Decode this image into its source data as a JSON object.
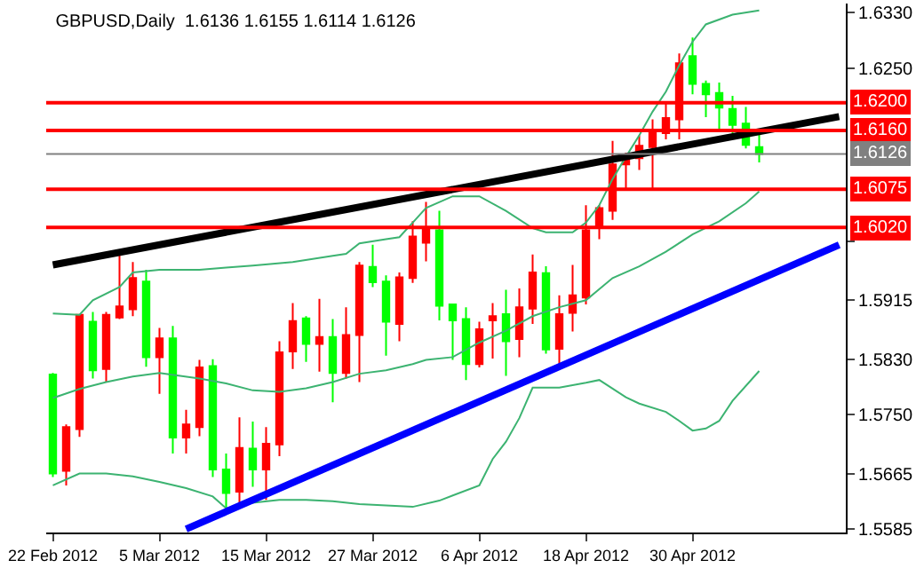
{
  "chart_data": {
    "type": "candlestick",
    "title": "GBPUSD,Daily  1.6136 1.6155 1.6114 1.6126",
    "categories": [
      "22 Feb 2012",
      null,
      null,
      null,
      null,
      null,
      null,
      null,
      "5 Mar 2012",
      null,
      null,
      null,
      null,
      null,
      null,
      null,
      "15 Mar 2012",
      null,
      null,
      null,
      null,
      null,
      null,
      null,
      "27 Mar 2012",
      null,
      null,
      null,
      null,
      null,
      null,
      null,
      "6 Apr 2012",
      null,
      null,
      null,
      null,
      null,
      null,
      null,
      "18 Apr 2012",
      null,
      null,
      null,
      null,
      null,
      null,
      null,
      "30 Apr 2012",
      null,
      null,
      null,
      null,
      null,
      null,
      null,
      null,
      null,
      null,
      null
    ],
    "ohlc": [
      [
        1.5808,
        1.581,
        1.566,
        1.5665
      ],
      [
        1.5669,
        1.5736,
        1.5648,
        1.5732
      ],
      [
        1.5729,
        1.5894,
        1.5718,
        1.5894
      ],
      [
        1.5884,
        1.5898,
        1.5802,
        1.5814
      ],
      [
        1.5816,
        1.5898,
        1.5797,
        1.5894
      ],
      [
        1.589,
        1.5985,
        1.5888,
        1.5906
      ],
      [
        1.5902,
        1.597,
        1.5892,
        1.5947
      ],
      [
        1.5942,
        1.5959,
        1.5819,
        1.5833
      ],
      [
        1.5833,
        1.5875,
        1.578,
        1.586
      ],
      [
        1.586,
        1.5878,
        1.5694,
        1.5717
      ],
      [
        1.5717,
        1.5757,
        1.5694,
        1.5736
      ],
      [
        1.5732,
        1.5829,
        1.5719,
        1.5818
      ],
      [
        1.582,
        1.583,
        1.566,
        1.5671
      ],
      [
        1.5671,
        1.5694,
        1.5614,
        1.5637
      ],
      [
        1.5639,
        1.5746,
        1.5618,
        1.5702
      ],
      [
        1.5701,
        1.574,
        1.5646,
        1.5671
      ],
      [
        1.5671,
        1.5732,
        1.5627,
        1.5708
      ],
      [
        1.5707,
        1.5856,
        1.569,
        1.584
      ],
      [
        1.5841,
        1.5911,
        1.5816,
        1.5885
      ],
      [
        1.5889,
        1.5892,
        1.5826,
        1.5852
      ],
      [
        1.5852,
        1.5917,
        1.5812,
        1.5862
      ],
      [
        1.5862,
        1.5888,
        1.5768,
        1.581
      ],
      [
        1.581,
        1.5905,
        1.5802,
        1.5865
      ],
      [
        1.5865,
        1.597,
        1.5797,
        1.5965
      ],
      [
        1.5963,
        1.5995,
        1.5934,
        1.5941
      ],
      [
        1.5942,
        1.5951,
        1.5835,
        1.5884
      ],
      [
        1.5881,
        1.5955,
        1.5856,
        1.5948
      ],
      [
        1.5947,
        1.6029,
        1.594,
        1.6007
      ],
      [
        1.5998,
        1.6057,
        1.5971,
        1.6017
      ],
      [
        1.6016,
        1.6044,
        1.5886,
        1.5907
      ],
      [
        1.5909,
        1.5909,
        1.5829,
        1.5886
      ],
      [
        1.5888,
        1.5905,
        1.58,
        1.5823
      ],
      [
        1.5823,
        1.5884,
        1.5818,
        1.5873
      ],
      [
        1.5886,
        1.5911,
        1.5831,
        1.5892
      ],
      [
        1.5895,
        1.593,
        1.5806,
        1.5856
      ],
      [
        1.5859,
        1.5932,
        1.5833,
        1.5905
      ],
      [
        1.5903,
        1.5981,
        1.5881,
        1.5955
      ],
      [
        1.5954,
        1.5964,
        1.5838,
        1.5844
      ],
      [
        1.5845,
        1.5922,
        1.5817,
        1.5895
      ],
      [
        1.5897,
        1.5966,
        1.587,
        1.5922
      ],
      [
        1.5919,
        1.6052,
        1.5909,
        1.6016
      ],
      [
        1.6022,
        1.6052,
        1.6003,
        1.6048
      ],
      [
        1.6044,
        1.6145,
        1.6031,
        1.6111
      ],
      [
        1.6111,
        1.6128,
        1.6075,
        1.6125
      ],
      [
        1.612,
        1.6153,
        1.6103,
        1.6138
      ],
      [
        1.6136,
        1.6176,
        1.6075,
        1.6157
      ],
      [
        1.6156,
        1.6201,
        1.6147,
        1.6178
      ],
      [
        1.6176,
        1.6271,
        1.6147,
        1.6257
      ],
      [
        1.6267,
        1.6294,
        1.6212,
        1.6227
      ],
      [
        1.6227,
        1.6232,
        1.6179,
        1.6212
      ],
      [
        1.6214,
        1.6229,
        1.6159,
        1.6193
      ],
      [
        1.6191,
        1.621,
        1.6156,
        1.6168
      ],
      [
        1.617,
        1.6194,
        1.6134,
        1.6139
      ],
      [
        1.6136,
        1.6155,
        1.6114,
        1.6126
      ],
      null,
      null,
      null,
      null,
      null,
      null
    ],
    "colors": [
      "#00ff00",
      "#ff0000",
      "#ff0000",
      "#00ff00",
      "#ff0000",
      "#ff0000",
      "#ff0000",
      "#00ff00",
      "#ff0000",
      "#00ff00",
      "#ff0000",
      "#ff0000",
      "#00ff00",
      "#00ff00",
      "#ff0000",
      "#00ff00",
      "#ff0000",
      "#ff0000",
      "#ff0000",
      "#00ff00",
      "#ff0000",
      "#00ff00",
      "#ff0000",
      "#ff0000",
      "#00ff00",
      "#00ff00",
      "#ff0000",
      "#ff0000",
      "#ff0000",
      "#00ff00",
      "#00ff00",
      "#00ff00",
      "#ff0000",
      "#ff0000",
      "#00ff00",
      "#ff0000",
      "#ff0000",
      "#00ff00",
      "#ff0000",
      "#ff0000",
      "#ff0000",
      "#ff0000",
      "#ff0000",
      "#ff0000",
      "#ff0000",
      "#ff0000",
      "#ff0000",
      "#ff0000",
      "#00ff00",
      "#00ff00",
      "#00ff00",
      "#00ff00",
      "#00ff00",
      "#00ff00",
      null,
      null,
      null,
      null,
      null,
      null
    ],
    "series": [
      {
        "type": "line",
        "color": "#3cb371",
        "values": [
          1.5896,
          null,
          1.5894,
          1.5915,
          null,
          1.5934,
          1.5955,
          null,
          1.5959,
          null,
          null,
          1.5959,
          null,
          1.5962,
          null,
          1.5965,
          null,
          null,
          1.597,
          null,
          null,
          1.5979,
          1.5982,
          1.5997,
          null,
          1.6003,
          1.6006,
          1.6027,
          1.6048,
          null,
          1.6065,
          null,
          1.6065,
          null,
          1.6044,
          null,
          1.6019,
          1.6013,
          null,
          1.6013,
          1.6027,
          1.6052,
          1.609,
          1.6122,
          1.6153,
          1.6187,
          1.6216,
          1.6254,
          1.6288,
          1.6313,
          null,
          1.6327,
          null,
          1.6333,
          null,
          null,
          null,
          null,
          null,
          null
        ]
      },
      {
        "type": "line",
        "color": "#3cb371",
        "values": [
          1.5774,
          null,
          1.5787,
          null,
          1.5797,
          null,
          1.5805,
          null,
          1.581,
          null,
          null,
          1.5802,
          null,
          1.5795,
          null,
          1.5785,
          null,
          1.5783,
          null,
          1.5788,
          null,
          1.5797,
          null,
          1.5809,
          null,
          1.5814,
          null,
          1.5823,
          1.5829,
          null,
          1.5833,
          null,
          1.5854,
          null,
          1.5871,
          null,
          1.5892,
          null,
          1.5905,
          null,
          1.5915,
          null,
          1.5947,
          null,
          1.5964,
          null,
          1.5985,
          null,
          1.601,
          null,
          1.6029,
          null,
          1.6055,
          1.6072,
          null,
          null,
          null,
          null,
          null,
          null
        ]
      },
      {
        "type": "line",
        "color": "#3cb371",
        "values": [
          1.5648,
          null,
          1.5665,
          null,
          1.5665,
          null,
          1.5661,
          null,
          1.5653,
          null,
          1.5644,
          null,
          1.5632,
          1.5615,
          null,
          1.5623,
          null,
          1.5627,
          null,
          1.5627,
          null,
          1.5625,
          null,
          1.5621,
          null,
          1.5619,
          null,
          1.5617,
          null,
          1.5626,
          null,
          null,
          1.5648,
          1.5686,
          1.5711,
          1.5745,
          1.5789,
          null,
          1.5789,
          null,
          1.5796,
          1.58,
          null,
          1.5775,
          1.5766,
          null,
          1.5754,
          1.5741,
          1.5727,
          1.573,
          1.5741,
          1.577,
          null,
          1.5813,
          null,
          null,
          null,
          null,
          null,
          null
        ]
      },
      {
        "type": "line",
        "color": "#000000",
        "values": [
          1.5966,
          null,
          null,
          null,
          null,
          null,
          null,
          null,
          null,
          null,
          null,
          null,
          null,
          null,
          null,
          null,
          null,
          null,
          null,
          null,
          null,
          null,
          null,
          null,
          null,
          null,
          null,
          null,
          null,
          null,
          null,
          null,
          null,
          null,
          null,
          null,
          null,
          null,
          null,
          null,
          null,
          null,
          null,
          null,
          null,
          null,
          null,
          null,
          null,
          null,
          null,
          null,
          null,
          null,
          null,
          null,
          null,
          null,
          null,
          1.618
        ]
      },
      {
        "type": "line",
        "color": "#0000ff",
        "values": [
          null,
          null,
          null,
          null,
          null,
          null,
          null,
          null,
          null,
          null,
          1.5585,
          null,
          null,
          null,
          null,
          null,
          null,
          null,
          null,
          null,
          null,
          null,
          null,
          null,
          null,
          null,
          null,
          null,
          null,
          null,
          null,
          null,
          null,
          null,
          null,
          null,
          null,
          null,
          null,
          null,
          null,
          null,
          null,
          null,
          null,
          null,
          null,
          null,
          null,
          null,
          null,
          null,
          null,
          null,
          null,
          null,
          null,
          null,
          null,
          1.5995
        ]
      }
    ],
    "ref_lines": [
      {
        "axis": "y",
        "value": 1.62,
        "label": "1.6200",
        "color": "#ff0000"
      },
      {
        "axis": "y",
        "value": 1.616,
        "label": "1.6160",
        "color": "#ff0000"
      },
      {
        "axis": "y",
        "value": 1.6126,
        "label": "1.6126",
        "color": "#808080"
      },
      {
        "axis": "y",
        "value": 1.6075,
        "label": "1.6075",
        "color": "#ff0000"
      },
      {
        "axis": "y",
        "value": 1.602,
        "label": "1.6020",
        "color": "#ff0000"
      }
    ],
    "ylim": [
      1.558,
      1.6343
    ],
    "yticks": [
      {
        "value": 1.633,
        "label": "1.6330"
      },
      {
        "value": 1.625,
        "label": "1.6250"
      },
      {
        "value": 1.6,
        "label": null
      },
      {
        "value": 1.5915,
        "label": "1.5915"
      },
      {
        "value": 1.583,
        "label": "1.5830"
      },
      {
        "value": 1.575,
        "label": "1.5750"
      },
      {
        "value": 1.5665,
        "label": "1.5665"
      },
      {
        "value": 1.5585,
        "label": "1.5585"
      }
    ],
    "tick_labels": true
  }
}
